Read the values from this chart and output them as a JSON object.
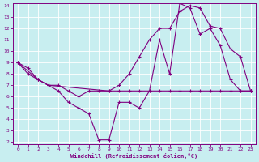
{
  "xlabel": "Windchill (Refroidissement éolien,°C)",
  "background_color": "#c8eef0",
  "grid_color": "#ffffff",
  "line_color": "#800080",
  "ylim": [
    2,
    14
  ],
  "xlim": [
    -0.5,
    23.5
  ],
  "yticks": [
    2,
    3,
    4,
    5,
    6,
    7,
    8,
    9,
    10,
    11,
    12,
    13,
    14
  ],
  "xticks": [
    0,
    1,
    2,
    3,
    4,
    5,
    6,
    7,
    8,
    9,
    10,
    11,
    12,
    13,
    14,
    15,
    16,
    17,
    18,
    19,
    20,
    21,
    22,
    23
  ],
  "line1_x": [
    0,
    1,
    2,
    3,
    4,
    5,
    6,
    7,
    8,
    9,
    10,
    11,
    12,
    13,
    14,
    15,
    16,
    17,
    18,
    19,
    20,
    21,
    22,
    23
  ],
  "line1_y": [
    9,
    8,
    7.5,
    7,
    6.5,
    5.5,
    5.0,
    4.5,
    2.2,
    2.2,
    5.5,
    5.5,
    5.0,
    6.5,
    11.0,
    8.0,
    14.2,
    13.8,
    11.5,
    12.0,
    10.5,
    7.5,
    6.5,
    6.5
  ],
  "line2_x": [
    0,
    1,
    2,
    3,
    4,
    5,
    6,
    7,
    8,
    9,
    10,
    11,
    12,
    13,
    14,
    15,
    16,
    17,
    18,
    19,
    20,
    21,
    22,
    23
  ],
  "line2_y": [
    9,
    8.5,
    7.5,
    7,
    7,
    6.5,
    6.0,
    6.5,
    6.5,
    6.5,
    6.5,
    6.5,
    6.5,
    6.5,
    6.5,
    6.5,
    6.5,
    6.5,
    6.5,
    6.5,
    6.5,
    6.5,
    6.5,
    6.5
  ],
  "line3_x": [
    0,
    2,
    3,
    9,
    10,
    11,
    12,
    13,
    14,
    15,
    16,
    17,
    18,
    19,
    20,
    21,
    22,
    23
  ],
  "line3_y": [
    9,
    7.5,
    7,
    6.5,
    7.0,
    8.0,
    9.5,
    11.0,
    12.0,
    12.0,
    13.5,
    14.0,
    13.8,
    12.2,
    12.0,
    10.2,
    9.5,
    6.5
  ]
}
